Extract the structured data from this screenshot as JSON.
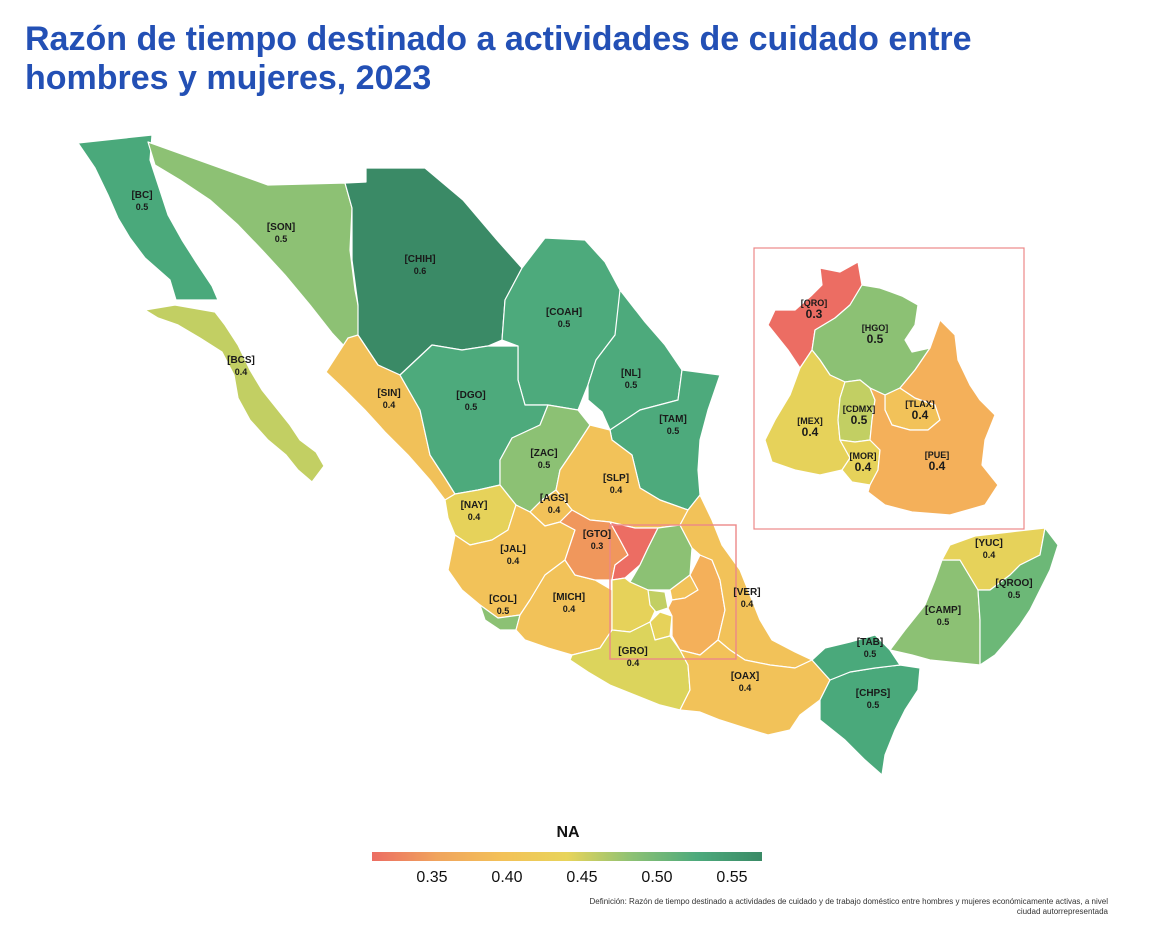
{
  "title": "Razón de tiempo destinado a actividades de cuidado entre hombres y mujeres, 2023",
  "definition": "Definición: Razón de tiempo destinado a actividades de cuidado y de trabajo doméstico entre hombres y mujeres económicamente activas, a nivel ciudad autorrepresentada",
  "legend": {
    "title": "NA",
    "ticks": [
      "0.35",
      "0.40",
      "0.45",
      "0.50",
      "0.55"
    ],
    "tick_values": [
      0.35,
      0.4,
      0.45,
      0.5,
      0.55
    ],
    "min": 0.31,
    "max": 0.57,
    "colors": [
      "#ec6d63",
      "#f0a45d",
      "#f3c158",
      "#e8d45a",
      "#8cc174",
      "#4daa7c",
      "#3a8a66"
    ]
  },
  "states": {
    "BC": {
      "abbr": "[BC]",
      "value": 0.5,
      "label": "0.5",
      "color": "#4aa97b"
    },
    "BCS": {
      "abbr": "[BCS]",
      "value": 0.4,
      "label": "0.4",
      "color": "#c2cf63"
    },
    "SON": {
      "abbr": "[SON]",
      "value": 0.5,
      "label": "0.5",
      "color": "#8dc174"
    },
    "CHIH": {
      "abbr": "[CHIH]",
      "value": 0.6,
      "label": "0.6",
      "color": "#3a8a66"
    },
    "COAH": {
      "abbr": "[COAH]",
      "value": 0.5,
      "label": "0.5",
      "color": "#4daa7c"
    },
    "NL": {
      "abbr": "[NL]",
      "value": 0.5,
      "label": "0.5",
      "color": "#4daa7c"
    },
    "TAM": {
      "abbr": "[TAM]",
      "value": 0.5,
      "label": "0.5",
      "color": "#4daa7c"
    },
    "SIN": {
      "abbr": "[SIN]",
      "value": 0.4,
      "label": "0.4",
      "color": "#f1c159"
    },
    "DGO": {
      "abbr": "[DGO]",
      "value": 0.5,
      "label": "0.5",
      "color": "#4daa7c"
    },
    "ZAC": {
      "abbr": "[ZAC]",
      "value": 0.5,
      "label": "0.5",
      "color": "#8cc174"
    },
    "SLP": {
      "abbr": "[SLP]",
      "value": 0.4,
      "label": "0.4",
      "color": "#f2c259"
    },
    "AGS": {
      "abbr": "[AGS]",
      "value": 0.4,
      "label": "0.4",
      "color": "#f2c259"
    },
    "NAY": {
      "abbr": "[NAY]",
      "value": 0.4,
      "label": "0.4",
      "color": "#e6d25a"
    },
    "JAL": {
      "abbr": "[JAL]",
      "value": 0.4,
      "label": "0.4",
      "color": "#f2c259"
    },
    "COL": {
      "abbr": "[COL]",
      "value": 0.5,
      "label": "0.5",
      "color": "#8cc174"
    },
    "MICH": {
      "abbr": "[MICH]",
      "value": 0.4,
      "label": "0.4",
      "color": "#f2c259"
    },
    "GTO": {
      "abbr": "[GTO]",
      "value": 0.3,
      "label": "0.3",
      "color": "#f0975c"
    },
    "GRO": {
      "abbr": "[GRO]",
      "value": 0.4,
      "label": "0.4",
      "color": "#dcd45c"
    },
    "VER": {
      "abbr": "[VER]",
      "value": 0.4,
      "label": "0.4",
      "color": "#f2c259"
    },
    "OAX": {
      "abbr": "[OAX]",
      "value": 0.4,
      "label": "0.4",
      "color": "#f2c259"
    },
    "CHPS": {
      "abbr": "[CHPS]",
      "value": 0.5,
      "label": "0.5",
      "color": "#4aa97b"
    },
    "TAB": {
      "abbr": "[TAB]",
      "value": 0.5,
      "label": "0.5",
      "color": "#4aa97b"
    },
    "CAMP": {
      "abbr": "[CAMP]",
      "value": 0.5,
      "label": "0.5",
      "color": "#8cc174"
    },
    "YUC": {
      "abbr": "[YUC]",
      "value": 0.4,
      "label": "0.4",
      "color": "#e6d25a"
    },
    "QROO": {
      "abbr": "[QROO]",
      "value": 0.5,
      "label": "0.5",
      "color": "#6cb877"
    }
  },
  "inset_states": {
    "QRO": {
      "abbr": "[QRO]",
      "value": 0.3,
      "label": "0.3",
      "color": "#ec6d63"
    },
    "HGO": {
      "abbr": "[HGO]",
      "value": 0.5,
      "label": "0.5",
      "color": "#8cc174"
    },
    "MEX": {
      "abbr": "[MEX]",
      "value": 0.4,
      "label": "0.4",
      "color": "#e6d25a"
    },
    "CDMX": {
      "abbr": "[CDMX]",
      "value": 0.5,
      "label": "0.5",
      "color": "#c2cf63"
    },
    "TLAX": {
      "abbr": "[TLAX]",
      "value": 0.4,
      "label": "0.4",
      "color": "#f2c259"
    },
    "MOR": {
      "abbr": "[MOR]",
      "value": 0.4,
      "label": "0.4",
      "color": "#e6d25a"
    },
    "PUE": {
      "abbr": "[PUE]",
      "value": 0.4,
      "label": "0.4",
      "color": "#f4b05a"
    }
  },
  "inset_box_color": "#ec8888"
}
